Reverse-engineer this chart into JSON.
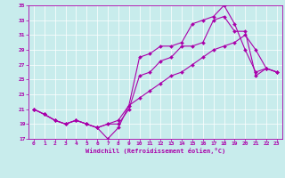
{
  "title": "",
  "xlabel": "Windchill (Refroidissement éolien,°C)",
  "bg_color": "#c8ecec",
  "grid_color": "#ffffff",
  "line_color": "#aa00aa",
  "xlim": [
    -0.5,
    23.5
  ],
  "ylim": [
    17,
    35
  ],
  "xticks": [
    0,
    1,
    2,
    3,
    4,
    5,
    6,
    7,
    8,
    9,
    10,
    11,
    12,
    13,
    14,
    15,
    16,
    17,
    18,
    19,
    20,
    21,
    22,
    23
  ],
  "yticks": [
    17,
    19,
    21,
    23,
    25,
    27,
    29,
    31,
    33,
    35
  ],
  "line1_x": [
    0,
    1,
    2,
    3,
    4,
    5,
    6,
    7,
    8,
    9,
    10,
    11,
    12,
    13,
    14,
    15,
    16,
    17,
    18,
    19,
    20,
    21,
    22,
    23
  ],
  "line1_y": [
    21,
    20.3,
    19.5,
    19.0,
    19.5,
    19.0,
    18.5,
    17.0,
    18.5,
    21.5,
    28.0,
    28.5,
    29.5,
    29.5,
    30.0,
    32.5,
    33.0,
    33.5,
    35.0,
    32.5,
    29.0,
    26.0,
    26.5,
    26.0
  ],
  "line2_x": [
    0,
    1,
    2,
    3,
    4,
    5,
    6,
    7,
    8,
    9,
    10,
    11,
    12,
    13,
    14,
    15,
    16,
    17,
    18,
    19,
    20,
    21,
    22,
    23
  ],
  "line2_y": [
    21,
    20.3,
    19.5,
    19.0,
    19.5,
    19.0,
    18.5,
    19.0,
    19.0,
    21.0,
    25.5,
    26.0,
    27.5,
    28.0,
    29.5,
    29.5,
    30.0,
    33.0,
    33.5,
    31.5,
    31.5,
    25.5,
    26.5,
    26.0
  ],
  "line3_x": [
    0,
    1,
    2,
    3,
    4,
    5,
    6,
    7,
    8,
    9,
    10,
    11,
    12,
    13,
    14,
    15,
    16,
    17,
    18,
    19,
    20,
    21,
    22,
    23
  ],
  "line3_y": [
    21,
    20.3,
    19.5,
    19.0,
    19.5,
    19.0,
    18.5,
    19.0,
    19.5,
    21.5,
    22.5,
    23.5,
    24.5,
    25.5,
    26.0,
    27.0,
    28.0,
    29.0,
    29.5,
    30.0,
    31.0,
    29.0,
    26.5,
    26.0
  ]
}
